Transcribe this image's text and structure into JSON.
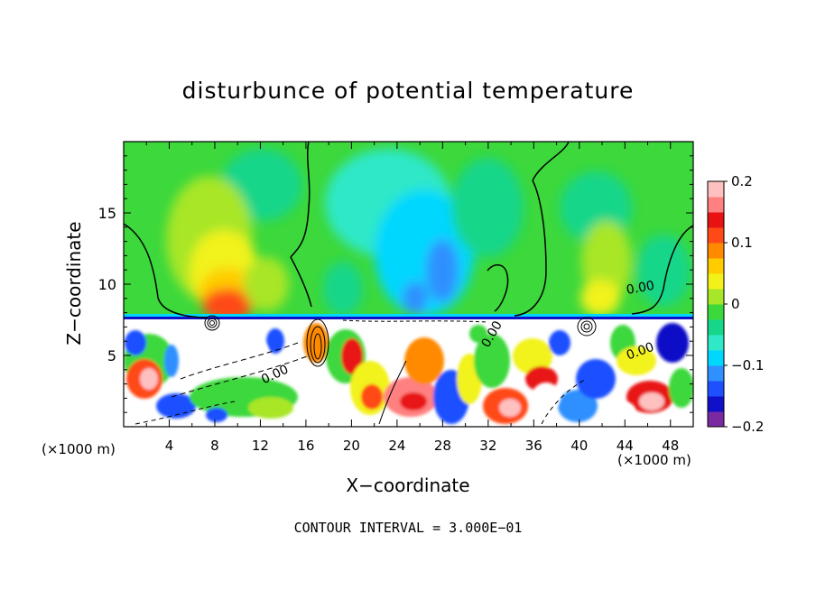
{
  "chart_data": {
    "type": "heatmap",
    "title": "disturbunce of potential temperature",
    "xlabel": "X−coordinate",
    "ylabel": "Z−coordinate",
    "x_unit_label": "(×1000 m)",
    "x_unit_label_right": "(×1000 m)",
    "xlim": [
      0,
      50
    ],
    "ylim": [
      0,
      20
    ],
    "x_ticks": [
      4,
      8,
      12,
      16,
      20,
      24,
      28,
      32,
      36,
      40,
      44,
      48
    ],
    "x_tick_labels": [
      "4",
      "8",
      "12",
      "16",
      "20",
      "24",
      "28",
      "32",
      "36",
      "40",
      "44",
      "48"
    ],
    "y_ticks": [
      5,
      10,
      15
    ],
    "y_tick_labels": [
      "5",
      "10",
      "15"
    ],
    "colorbar": {
      "range": [
        -0.2,
        0.2
      ],
      "ticks": [
        -0.2,
        -0.1,
        0,
        0.1,
        0.2
      ],
      "tick_labels": [
        "−0.2",
        "−0.1",
        "0",
        "0.1",
        "0.2"
      ],
      "colors": [
        "#7a2aa0",
        "#1010c8",
        "#1e50ff",
        "#2f90ff",
        "#00d7ff",
        "#2fe8c8",
        "#16d68a",
        "#3cd83c",
        "#a8e628",
        "#f2f21a",
        "#ffcc00",
        "#ff8a00",
        "#ff4a18",
        "#e81212",
        "#ff8080",
        "#ffc0c0"
      ]
    },
    "contour_labels": [
      "0.00",
      "0.00",
      "0.00",
      "0.00"
    ],
    "contour_interval_text": "CONTOUR INTERVAL = 3.000E−01",
    "regions": [
      {
        "desc": "warm anomaly above x=8",
        "x": [
          4,
          14
        ],
        "z": [
          7.5,
          17
        ],
        "value": 0.12
      },
      {
        "desc": "cool anomaly around x=26",
        "x": [
          18,
          34
        ],
        "z": [
          7.5,
          18
        ],
        "value": -0.06
      },
      {
        "desc": "warm anomaly above x=40",
        "x": [
          36,
          46
        ],
        "z": [
          7.5,
          14
        ],
        "value": 0.04
      },
      {
        "desc": "cool band at tropopause",
        "x": [
          0,
          50
        ],
        "z": [
          7.3,
          7.7
        ],
        "value": -0.15
      },
      {
        "desc": "turbulent layer below 7.5 km",
        "x": [
          0,
          50
        ],
        "z": [
          0,
          7.3
        ],
        "value": 0
      }
    ]
  }
}
